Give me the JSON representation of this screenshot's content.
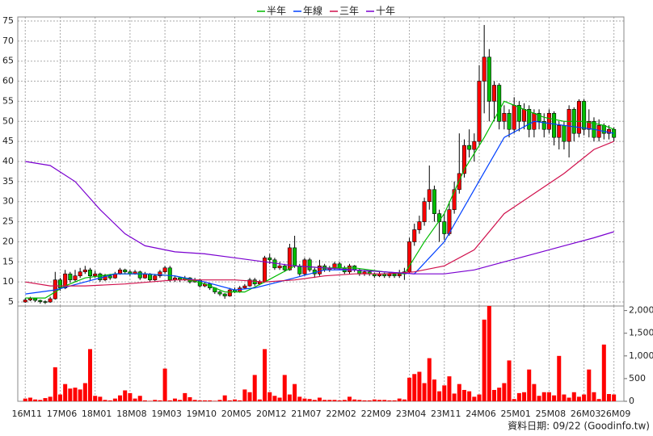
{
  "chart_data": {
    "type": "candlestick",
    "legend": "top",
    "up_color": "#ff0000",
    "down_color": "#00c000",
    "xlim": [
      -1.5,
      120
    ],
    "xticks": [
      {
        "value": 0,
        "label": "16M11"
      },
      {
        "value": 7,
        "label": "17M06"
      },
      {
        "value": 14,
        "label": "18M01"
      },
      {
        "value": 21,
        "label": "18M08"
      },
      {
        "value": 28,
        "label": "19M03"
      },
      {
        "value": 35,
        "label": "19M10"
      },
      {
        "value": 42,
        "label": "20M05"
      },
      {
        "value": 49,
        "label": "20M12"
      },
      {
        "value": 56,
        "label": "21M07"
      },
      {
        "value": 63,
        "label": "22M02"
      },
      {
        "value": 70,
        "label": "22M09"
      },
      {
        "value": 77,
        "label": "23M04"
      },
      {
        "value": 84,
        "label": "23M11"
      },
      {
        "value": 91,
        "label": "24M06"
      },
      {
        "value": 98,
        "label": "25M01"
      },
      {
        "value": 105,
        "label": "25M08"
      },
      {
        "value": 112,
        "label": "26M03"
      },
      {
        "value": 118,
        "label": "26M09"
      }
    ],
    "ylim": [
      4,
      76
    ],
    "yticks": [
      5,
      10,
      15,
      20,
      25,
      30,
      35,
      40,
      45,
      50,
      55,
      60,
      65,
      70,
      75
    ],
    "grid": true,
    "x": [
      0,
      1,
      2,
      3,
      4,
      5,
      6,
      7,
      8,
      9,
      10,
      11,
      12,
      13,
      14,
      15,
      16,
      17,
      18,
      19,
      20,
      21,
      22,
      23,
      24,
      25,
      26,
      27,
      28,
      29,
      30,
      31,
      32,
      33,
      34,
      35,
      36,
      37,
      38,
      39,
      40,
      41,
      42,
      43,
      44,
      45,
      46,
      47,
      48,
      49,
      50,
      51,
      52,
      53,
      54,
      55,
      56,
      57,
      58,
      59,
      60,
      61,
      62,
      63,
      64,
      65,
      66,
      67,
      68,
      69,
      70,
      71,
      72,
      73,
      74,
      75,
      76,
      77,
      78,
      79,
      80,
      81,
      82,
      83,
      84,
      85,
      86,
      87,
      88,
      89,
      90,
      91,
      92,
      93,
      94,
      95,
      96,
      97,
      98,
      99,
      100,
      101,
      102,
      103,
      104,
      105,
      106,
      107,
      108,
      109,
      110,
      111,
      112,
      113,
      114,
      115,
      116,
      117,
      118
    ],
    "open": [
      5.0,
      5.5,
      5.9,
      5.4,
      5.1,
      5.0,
      5.8,
      10.5,
      8.5,
      12.0,
      10.5,
      11.5,
      12.5,
      13.0,
      11.5,
      12.0,
      10.5,
      11.5,
      11.0,
      12.0,
      13.0,
      12.5,
      12.0,
      12.5,
      11.0,
      12.0,
      10.5,
      11.5,
      12.5,
      13.5,
      10.5,
      11.0,
      10.5,
      11.0,
      10.0,
      10.5,
      9.0,
      9.5,
      8.5,
      7.5,
      7.0,
      6.5,
      8.0,
      7.5,
      8.5,
      9.0,
      10.5,
      9.5,
      10.0,
      16.0,
      15.5,
      13.5,
      14.0,
      13.0,
      18.5,
      14.0,
      12.0,
      15.5,
      13.0,
      12.0,
      14.0,
      13.0,
      13.5,
      14.5,
      13.5,
      12.5,
      14.0,
      13.0,
      12.0,
      12.5,
      12.0,
      11.5,
      12.0,
      11.5,
      12.0,
      11.5,
      12.0,
      12.5,
      20.0,
      23.0,
      25.0,
      30.0,
      33.0,
      27.0,
      25.0,
      22.0,
      28.0,
      33.0,
      37.0,
      44.0,
      43.0,
      45.0,
      60.0,
      66.0,
      55.0,
      59.0,
      50.0,
      52.0,
      48.0,
      54.0,
      50.0,
      53.0,
      48.0,
      52.0,
      50.0,
      48.0,
      52.0,
      46.0,
      49.0,
      45.0,
      53.0,
      47.0,
      55.0,
      48.0,
      50.0,
      46.0,
      49.0,
      47.0,
      48.0
    ],
    "high": [
      6.0,
      6.3,
      6.0,
      5.6,
      5.4,
      6.3,
      12.5,
      11.0,
      13.0,
      12.5,
      13.0,
      13.5,
      14.0,
      13.5,
      12.8,
      12.3,
      12.0,
      12.0,
      12.5,
      13.5,
      13.3,
      13.0,
      13.0,
      12.8,
      12.5,
      12.2,
      12.0,
      13.0,
      14.0,
      14.0,
      11.5,
      11.3,
      11.5,
      11.2,
      11.0,
      10.8,
      10.0,
      9.7,
      8.7,
      7.8,
      7.2,
      8.5,
      8.6,
      9.0,
      9.5,
      11.0,
      11.0,
      10.5,
      16.5,
      17.0,
      16.0,
      15.0,
      14.5,
      19.5,
      21.5,
      14.5,
      16.0,
      16.0,
      13.5,
      15.5,
      14.5,
      14.0,
      15.0,
      15.0,
      14.0,
      14.5,
      14.2,
      13.3,
      13.0,
      12.8,
      12.3,
      12.5,
      12.3,
      12.5,
      12.4,
      13.0,
      13.5,
      21.0,
      24.5,
      26.5,
      31.0,
      39.0,
      34.0,
      28.0,
      27.0,
      30.0,
      35.0,
      47.0,
      45.5,
      48.0,
      47.0,
      64.0,
      74.0,
      68.0,
      60.0,
      59.5,
      54.0,
      53.0,
      56.0,
      55.0,
      54.5,
      54.0,
      53.0,
      53.0,
      52.0,
      53.0,
      52.5,
      50.0,
      50.0,
      54.0,
      53.5,
      55.5,
      55.5,
      53.0,
      51.0,
      50.5,
      49.5,
      49.0,
      48.5
    ],
    "low": [
      4.8,
      5.2,
      5.0,
      4.6,
      4.5,
      4.8,
      5.6,
      7.8,
      8.2,
      9.8,
      10.0,
      11.0,
      12.0,
      10.5,
      11.0,
      10.0,
      10.2,
      10.5,
      10.8,
      11.8,
      12.0,
      11.5,
      11.8,
      10.5,
      10.8,
      10.0,
      10.2,
      11.0,
      12.0,
      10.0,
      10.0,
      10.0,
      10.2,
      9.6,
      9.8,
      8.6,
      8.7,
      8.0,
      7.0,
      6.5,
      5.8,
      6.3,
      7.2,
      7.3,
      8.2,
      8.8,
      9.0,
      9.2,
      9.8,
      14.5,
      13.0,
      13.0,
      12.5,
      12.8,
      13.5,
      11.5,
      11.5,
      12.5,
      11.0,
      11.5,
      12.5,
      12.5,
      13.0,
      13.0,
      12.0,
      12.0,
      12.5,
      11.5,
      11.5,
      11.5,
      11.0,
      11.2,
      11.0,
      11.0,
      11.0,
      11.0,
      10.5,
      12.0,
      19.0,
      22.0,
      24.0,
      28.0,
      25.0,
      20.0,
      20.5,
      21.5,
      27.0,
      32.0,
      36.0,
      41.0,
      40.0,
      44.0,
      52.0,
      50.0,
      50.0,
      48.0,
      48.0,
      46.0,
      47.0,
      47.5,
      48.0,
      46.0,
      46.0,
      48.0,
      46.0,
      47.0,
      44.0,
      43.0,
      43.0,
      41.0,
      45.0,
      46.0,
      46.5,
      46.0,
      45.0,
      45.0,
      45.5,
      45.5,
      45.0
    ],
    "close": [
      5.5,
      5.9,
      5.4,
      5.1,
      5.0,
      5.8,
      10.5,
      8.5,
      12.0,
      10.5,
      11.5,
      12.5,
      13.0,
      11.5,
      12.0,
      10.5,
      11.5,
      11.0,
      12.0,
      13.0,
      12.5,
      12.0,
      12.5,
      11.0,
      12.0,
      10.5,
      11.5,
      12.5,
      13.5,
      10.5,
      11.0,
      10.5,
      11.0,
      10.0,
      10.5,
      9.0,
      9.5,
      8.5,
      7.5,
      7.0,
      6.5,
      8.0,
      7.5,
      8.5,
      9.0,
      10.5,
      9.5,
      10.0,
      16.0,
      15.5,
      13.5,
      14.0,
      13.0,
      18.5,
      14.0,
      12.0,
      15.5,
      13.0,
      12.0,
      14.0,
      13.0,
      13.5,
      14.5,
      13.5,
      12.5,
      14.0,
      13.0,
      12.0,
      12.5,
      12.0,
      11.5,
      12.0,
      11.5,
      12.0,
      11.5,
      12.0,
      12.5,
      20.0,
      23.0,
      25.0,
      30.0,
      33.0,
      27.0,
      25.0,
      22.0,
      28.0,
      33.0,
      37.0,
      44.0,
      43.0,
      45.0,
      60.0,
      66.0,
      55.0,
      59.0,
      50.0,
      52.0,
      48.0,
      54.0,
      50.0,
      53.0,
      48.0,
      52.0,
      50.0,
      48.0,
      52.0,
      46.0,
      49.0,
      45.0,
      53.0,
      47.0,
      55.0,
      48.0,
      50.0,
      46.0,
      49.0,
      47.0,
      48.0,
      46.0
    ],
    "series": [
      {
        "name": "半年",
        "color": "#00bb00",
        "x": [
          0,
          4,
          8,
          12,
          18,
          24,
          30,
          36,
          40,
          44,
          48,
          54,
          60,
          66,
          72,
          76,
          80,
          84,
          88,
          92,
          96,
          100,
          104,
          108,
          112,
          116,
          118
        ],
        "values": [
          6,
          6,
          9,
          11,
          12,
          12,
          11.5,
          9.5,
          7.5,
          7.5,
          10,
          14,
          13.5,
          13.5,
          12.5,
          12,
          20,
          27,
          38,
          46,
          55,
          53,
          51,
          50,
          50,
          49,
          48
        ]
      },
      {
        "name": "年線",
        "color": "#0040ff",
        "x": [
          0,
          6,
          12,
          18,
          24,
          30,
          36,
          42,
          46,
          54,
          60,
          66,
          72,
          78,
          84,
          90,
          96,
          102,
          108,
          114,
          118
        ],
        "values": [
          7,
          8,
          10,
          12,
          12,
          11.5,
          10,
          8,
          8.5,
          11,
          13,
          13,
          12.5,
          12,
          20,
          33,
          46,
          50,
          49,
          48,
          47
        ]
      },
      {
        "name": "三年",
        "color": "#d0104c",
        "x": [
          0,
          5,
          12,
          20,
          30,
          42,
          48,
          54,
          60,
          66,
          72,
          78,
          84,
          90,
          96,
          102,
          108,
          114,
          118
        ],
        "values": [
          10,
          9,
          9,
          9.5,
          10.5,
          10.5,
          10,
          10.5,
          11.5,
          12,
          12,
          12.5,
          14,
          18,
          27,
          32,
          37,
          43,
          45
        ]
      },
      {
        "name": "十年",
        "color": "#7a00d0",
        "x": [
          0,
          5,
          10,
          15,
          20,
          24,
          30,
          36,
          42,
          48,
          54,
          60,
          66,
          72,
          78,
          84,
          90,
          96,
          102,
          108,
          114,
          118
        ],
        "values": [
          40,
          39,
          35,
          28,
          22,
          19,
          17.5,
          17,
          16,
          15,
          14,
          13.5,
          13,
          12.5,
          12,
          12,
          13,
          15,
          17,
          19,
          21,
          22.5
        ]
      }
    ],
    "volume": {
      "color": "#ff0000",
      "ylim": [
        0,
        2100
      ],
      "yticks": [
        0,
        500,
        {
          "value": 1000,
          "label": "1,000"
        },
        {
          "value": 1500,
          "label": "1,500"
        },
        {
          "value": 2000,
          "label": "2,000"
        }
      ],
      "values": [
        60,
        80,
        40,
        30,
        70,
        100,
        750,
        150,
        380,
        280,
        300,
        260,
        400,
        1150,
        120,
        100,
        30,
        20,
        60,
        130,
        240,
        180,
        60,
        120,
        20,
        10,
        30,
        20,
        720,
        20,
        60,
        30,
        180,
        90,
        30,
        20,
        20,
        20,
        10,
        30,
        130,
        20,
        40,
        20,
        260,
        200,
        580,
        40,
        1150,
        200,
        120,
        80,
        580,
        150,
        380,
        100,
        60,
        50,
        30,
        80,
        30,
        30,
        30,
        20,
        30,
        100,
        40,
        30,
        20,
        20,
        40,
        30,
        30,
        20,
        20,
        60,
        40,
        520,
        600,
        650,
        400,
        950,
        480,
        220,
        350,
        550,
        170,
        380,
        250,
        220,
        100,
        150,
        1800,
        2100,
        250,
        300,
        400,
        900,
        50,
        180,
        200,
        700,
        380,
        120,
        200,
        200,
        130,
        1000,
        150,
        80,
        200,
        100,
        150,
        700,
        200,
        50,
        1250,
        160,
        150
      ]
    },
    "footnote": "資料日期: 09/22 (Goodinfo.tw)"
  }
}
